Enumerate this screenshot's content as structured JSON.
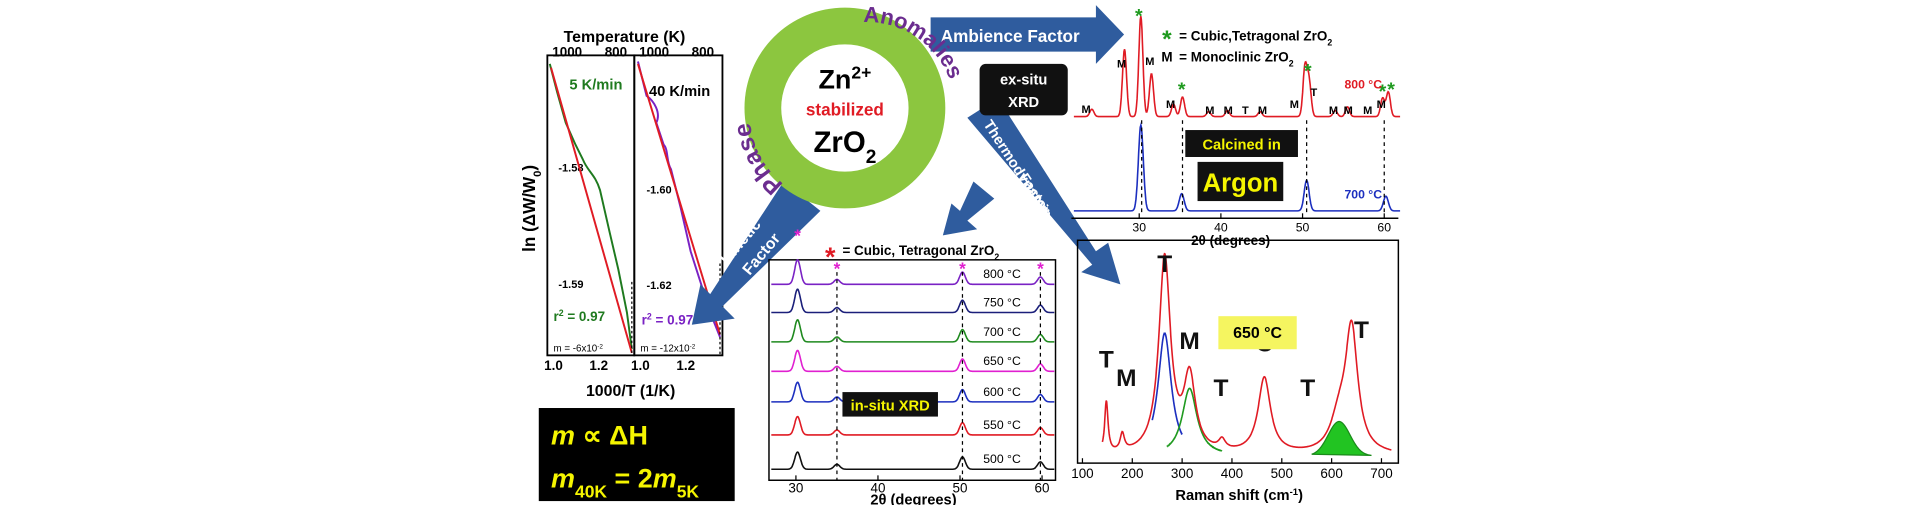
{
  "kinetics_panel": {
    "temperature_title": "Temperature (K)",
    "panel_a": {
      "temp_ticks": [
        "1000",
        "800"
      ],
      "rate": "5 K/min",
      "y_ticks": [
        "-1.58",
        "-1.59"
      ],
      "r2_prefix": "r",
      "r2_sup": "2",
      "r2_value": " = 0.97",
      "slope": "m = -6x10",
      "slope_exp": "-2",
      "x_ticks": [
        "1.0",
        "1.2"
      ]
    },
    "panel_b": {
      "temp_ticks": [
        "1000",
        "800"
      ],
      "rate": "40 K/min",
      "y_ticks": [
        "-1.60",
        "-1.62"
      ],
      "r2_prefix": "r",
      "r2_sup": "2",
      "r2_value": " = 0.97",
      "slope": "m = -12x10",
      "slope_exp": "-2",
      "x_ticks": [
        "1.0",
        "1.2"
      ]
    },
    "y_title": "ln (ΔW/W",
    "y_title_sub": "0",
    "y_title_end": ")",
    "x_title": "1000/T (1/K)",
    "relation": {
      "line1_m": "m",
      "line1_rest": " ∝ ΔH",
      "line2_m": "m",
      "line2_sub": "40K",
      "line2_eq": " = 2",
      "line2_m2": "m",
      "line2_sub2": "5K"
    }
  },
  "center": {
    "left_arc": "Phase",
    "right_arc": "Anomalies",
    "ion": "Zn",
    "ion_charge": "2+",
    "stabilized": "stabilized",
    "oxide": "ZrO",
    "oxide_sub": "2"
  },
  "arrows": {
    "ambience": "Ambience Factor",
    "kinetic": [
      "Kinetic",
      "Factor"
    ],
    "thermodynamic": [
      "Thermodynamic",
      "Factor"
    ]
  },
  "exsitu_xrd": {
    "legend": [
      {
        "symbol": "*",
        "text": "= Cubic,Tetragonal ZrO",
        "sub": "2"
      },
      {
        "symbol": "M",
        "text": "= Monoclinic ZrO",
        "sub": "2"
      }
    ],
    "method": [
      "ex-situ",
      "XRD"
    ],
    "temperatures": [
      "800 °C",
      "700 °C"
    ],
    "atmosphere_label": "Calcined in",
    "atmosphere": "Argon",
    "x_ticks": [
      "30",
      "40",
      "50",
      "60"
    ],
    "x_title": "2θ (degrees)",
    "peak_labels": [
      "M",
      "M",
      "*",
      "M",
      "M",
      "*",
      "M",
      "M",
      "T",
      "M",
      "M",
      "*",
      "T",
      "M",
      "M",
      "M",
      "M",
      "*",
      "*"
    ]
  },
  "insitu_xrd": {
    "legend": {
      "symbol": "*",
      "text": "= Cubic, Tetragonal ZrO",
      "sub": "2"
    },
    "temperatures": [
      "800 °C",
      "750 °C",
      "700 °C",
      "650 °C",
      "600 °C",
      "550 °C",
      "500 °C"
    ],
    "method": "in-situ XRD",
    "x_ticks": [
      "30",
      "40",
      "50",
      "60"
    ],
    "x_title": "2θ (degrees)",
    "peak_labels": [
      "*",
      "*",
      "*",
      "*"
    ]
  },
  "raman": {
    "temperature": "650 °C",
    "x_ticks": [
      "100",
      "200",
      "300",
      "400",
      "500",
      "600",
      "700"
    ],
    "x_title": "Raman shift (cm",
    "x_title_sup": "-1",
    "x_title_end": ")",
    "peak_labels": [
      "T",
      "M",
      "T",
      "M",
      "T",
      "C",
      "T",
      "T"
    ]
  }
}
